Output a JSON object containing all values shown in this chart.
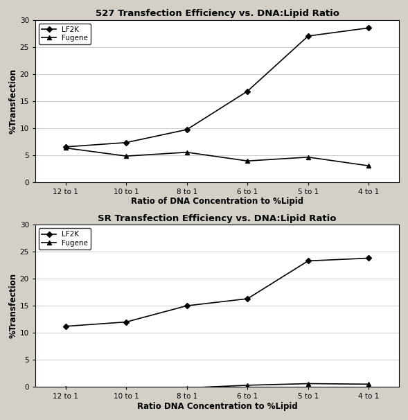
{
  "x_labels": [
    "12 to 1",
    "10 to 1",
    "8 to 1",
    "6 to 1",
    "5 to 1",
    "4 to 1"
  ],
  "top": {
    "title": "527 Transfection Efficiency vs. DNA:Lipid Ratio",
    "lf2k": [
      6.5,
      7.3,
      9.7,
      16.8,
      27.0,
      28.5
    ],
    "fugene": [
      6.3,
      4.8,
      5.5,
      3.9,
      4.6,
      3.0
    ],
    "xlabel": "Ratio of DNA Concentration to %Lipid",
    "ylabel": "%Transfection",
    "ylim": [
      0,
      30
    ],
    "yticks": [
      0,
      5,
      10,
      15,
      20,
      25,
      30
    ]
  },
  "bottom": {
    "title": "SR Transfection Efficiency vs. DNA:Lipid Ratio",
    "lf2k": [
      11.2,
      12.0,
      15.0,
      16.3,
      23.3,
      23.8
    ],
    "fugene": [
      -0.2,
      -0.3,
      -0.2,
      0.3,
      0.6,
      0.5
    ],
    "xlabel": "Ratio DNA Concentration to %Lipid",
    "ylabel": "%Transfection",
    "ylim": [
      0,
      30
    ],
    "yticks": [
      0,
      5,
      10,
      15,
      20,
      25,
      30
    ]
  },
  "line_color": "#000000",
  "lf2k_marker": "D",
  "fugene_marker": "^",
  "legend_lf2k": "LF2K",
  "legend_fugene": "Fugene",
  "fig_bg_color": "#d4d0c8",
  "plot_bg_color": "#ffffff",
  "title_fontsize": 9.5,
  "label_fontsize": 8.5,
  "tick_fontsize": 7.5,
  "legend_fontsize": 7.5
}
